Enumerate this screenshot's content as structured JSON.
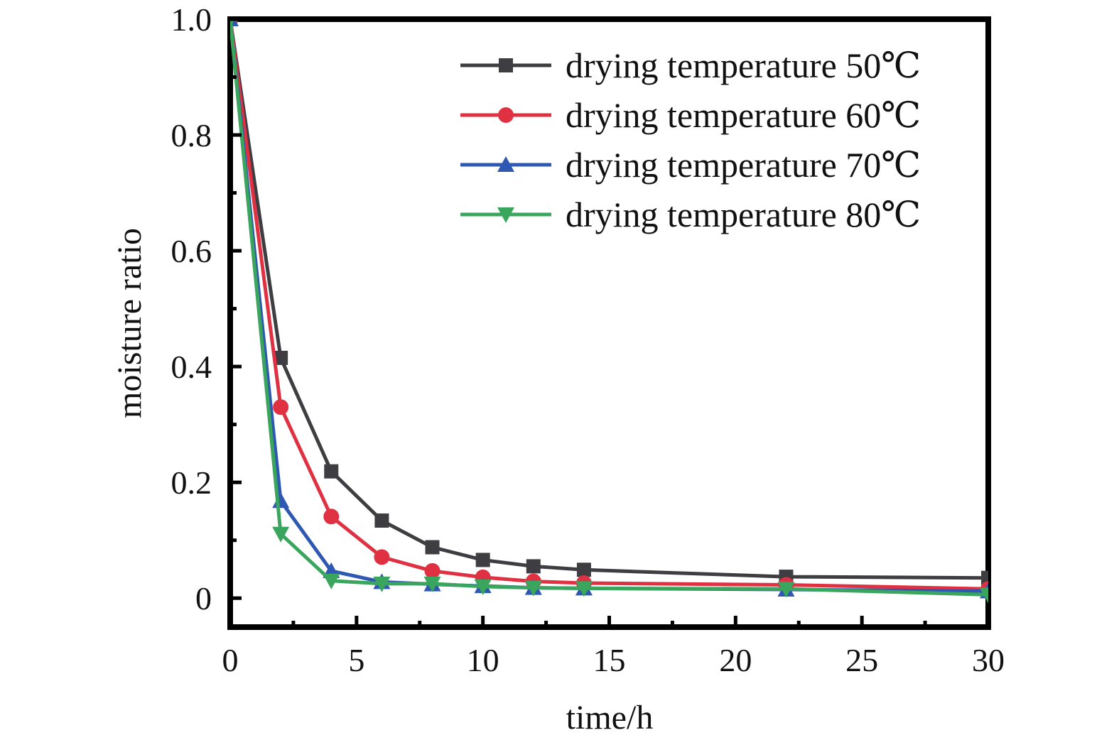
{
  "chart_data": {
    "type": "line",
    "title": "",
    "xlabel": "time/h",
    "ylabel": "moisture ratio",
    "xlim": [
      0,
      30
    ],
    "ylim": [
      -0.05,
      1.0
    ],
    "xticks": [
      0,
      5,
      10,
      15,
      20,
      25,
      30
    ],
    "xtick_labels": [
      "0",
      "5",
      "10",
      "15",
      "20",
      "25",
      "30"
    ],
    "yticks": [
      0,
      0.2,
      0.4,
      0.6,
      0.8,
      1.0
    ],
    "ytick_labels": [
      "0",
      "0.2",
      "0.4",
      "0.6",
      "0.8",
      "1.0"
    ],
    "grid": false,
    "legend_position": "top-right",
    "x": [
      0,
      2,
      4,
      6,
      8,
      10,
      12,
      14,
      22,
      30
    ],
    "series": [
      {
        "name": "drying temperature 50℃",
        "color": "#3d3d42",
        "marker": "square",
        "values": [
          1.0,
          0.415,
          0.219,
          0.134,
          0.088,
          0.066,
          0.055,
          0.049,
          0.037,
          0.035
        ]
      },
      {
        "name": "drying temperature 60℃",
        "color": "#e03142",
        "marker": "circle",
        "values": [
          1.0,
          0.33,
          0.141,
          0.071,
          0.047,
          0.036,
          0.029,
          0.026,
          0.023,
          0.016
        ]
      },
      {
        "name": "drying temperature 70℃",
        "color": "#2f58b3",
        "marker": "triangle-up",
        "values": [
          1.0,
          0.168,
          0.047,
          0.028,
          0.024,
          0.021,
          0.018,
          0.017,
          0.015,
          0.012
        ]
      },
      {
        "name": "drying temperature 80℃",
        "color": "#3aa55c",
        "marker": "triangle-down",
        "values": [
          1.0,
          0.111,
          0.03,
          0.025,
          0.025,
          0.02,
          0.018,
          0.017,
          0.016,
          0.006
        ]
      }
    ]
  }
}
